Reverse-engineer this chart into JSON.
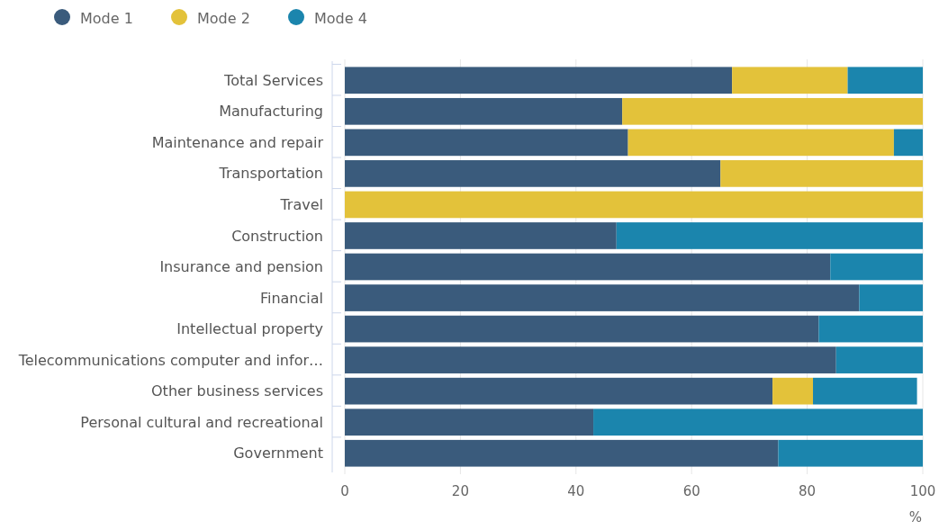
{
  "chart_data": {
    "type": "bar",
    "orientation": "horizontal",
    "stacked": true,
    "xlabel": "%",
    "categories": [
      "Total Services",
      "Manufacturing",
      "Maintenance and repair",
      "Transportation",
      "Travel",
      "Construction",
      "Insurance and pension",
      "Financial",
      "Intellectual property",
      "Telecommunications computer and infor…",
      "Other business services",
      "Personal cultural and recreational",
      "Government"
    ],
    "series": [
      {
        "name": "Mode 1",
        "color": "#3a5b7c",
        "values": [
          67,
          48,
          49,
          65,
          0,
          47,
          84,
          89,
          82,
          85,
          74,
          43,
          75
        ]
      },
      {
        "name": "Mode 2",
        "color": "#e3c23a",
        "values": [
          20,
          52,
          46,
          35,
          100,
          0,
          0,
          0,
          0,
          0,
          7,
          0,
          0
        ]
      },
      {
        "name": "Mode 4",
        "color": "#1b85ad",
        "values": [
          13,
          0,
          5,
          0,
          0,
          53,
          16,
          11,
          18,
          15,
          18,
          57,
          25
        ]
      }
    ],
    "xlim": [
      0,
      100
    ],
    "xticks": [
      0,
      20,
      40,
      60,
      80,
      100
    ],
    "grid": "x",
    "legend": "top left"
  }
}
